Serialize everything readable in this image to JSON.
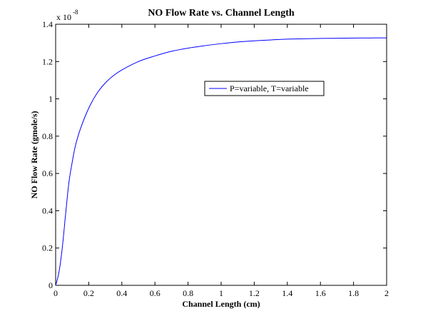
{
  "chart_data": {
    "type": "line",
    "title": "NO Flow Rate vs. Channel Length",
    "xlabel": "Channel Length (cm)",
    "ylabel": "NO Flow Rate (gmole/s)",
    "y_multiplier_base": "x 10",
    "y_multiplier_exp": "-8",
    "xlim": [
      0,
      2
    ],
    "ylim": [
      0,
      1.4
    ],
    "xticks": [
      0,
      0.2,
      0.4,
      0.6,
      0.8,
      1,
      1.2,
      1.4,
      1.6,
      1.8,
      2
    ],
    "xtick_labels": [
      "0",
      "0.2",
      "0.4",
      "0.6",
      "0.8",
      "1",
      "1.2",
      "1.4",
      "1.6",
      "1.8",
      "2"
    ],
    "yticks": [
      0,
      0.2,
      0.4,
      0.6,
      0.8,
      1,
      1.2,
      1.4
    ],
    "ytick_labels": [
      "0",
      "0.2",
      "0.4",
      "0.6",
      "0.8",
      "1",
      "1.2",
      "1.4"
    ],
    "grid": false,
    "legend_position": "upper-right-center",
    "series": [
      {
        "name": "P=variable, T=variable",
        "color": "#0000ff",
        "x": [
          0,
          0.02,
          0.04,
          0.06,
          0.08,
          0.1,
          0.12,
          0.15,
          0.2,
          0.25,
          0.3,
          0.35,
          0.4,
          0.5,
          0.6,
          0.7,
          0.8,
          0.9,
          1.0,
          1.1,
          1.2,
          1.3,
          1.4,
          1.5,
          1.6,
          1.7,
          1.8,
          1.9,
          2.0
        ],
        "y": [
          0,
          0.07,
          0.2,
          0.38,
          0.55,
          0.66,
          0.75,
          0.84,
          0.95,
          1.03,
          1.085,
          1.125,
          1.155,
          1.2,
          1.23,
          1.255,
          1.272,
          1.285,
          1.296,
          1.305,
          1.311,
          1.316,
          1.32,
          1.322,
          1.324,
          1.325,
          1.326,
          1.3265,
          1.327
        ]
      }
    ]
  }
}
